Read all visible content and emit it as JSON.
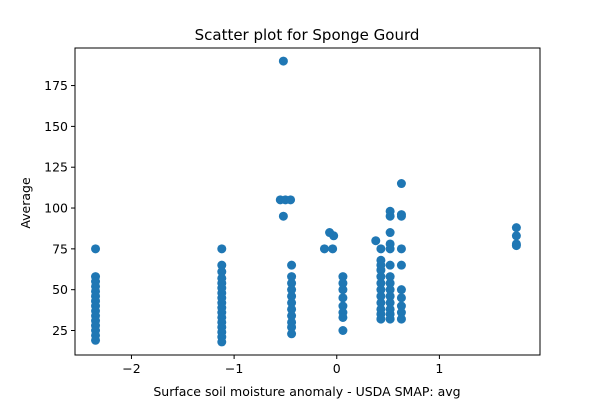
{
  "chart_data": {
    "type": "scatter",
    "title": "Scatter plot for Sponge Gourd",
    "xlabel": "Surface soil moisture anomaly  - USDA SMAP: avg",
    "ylabel": "Average",
    "xlim": [
      -2.55,
      1.98
    ],
    "ylim": [
      10,
      198
    ],
    "xticks": [
      -2,
      -1,
      0,
      1
    ],
    "yticks": [
      25,
      50,
      75,
      100,
      125,
      150,
      175
    ],
    "grid": false,
    "color": "#1f77b4",
    "series": [
      {
        "points": [
          [
            -2.35,
            75
          ],
          [
            -2.35,
            58
          ],
          [
            -2.35,
            55
          ],
          [
            -2.35,
            52
          ],
          [
            -2.35,
            49
          ],
          [
            -2.35,
            46
          ],
          [
            -2.35,
            43
          ],
          [
            -2.35,
            40
          ],
          [
            -2.35,
            37
          ],
          [
            -2.35,
            34
          ],
          [
            -2.35,
            31
          ],
          [
            -2.35,
            28
          ],
          [
            -2.35,
            25
          ],
          [
            -2.35,
            22
          ],
          [
            -2.35,
            19
          ],
          [
            -1.12,
            75
          ],
          [
            -1.12,
            65
          ],
          [
            -1.12,
            61
          ],
          [
            -1.12,
            57
          ],
          [
            -1.12,
            54
          ],
          [
            -1.12,
            51
          ],
          [
            -1.12,
            48
          ],
          [
            -1.12,
            45
          ],
          [
            -1.12,
            42
          ],
          [
            -1.12,
            39
          ],
          [
            -1.12,
            36
          ],
          [
            -1.12,
            33
          ],
          [
            -1.12,
            30
          ],
          [
            -1.12,
            27
          ],
          [
            -1.12,
            24
          ],
          [
            -1.12,
            21
          ],
          [
            -1.12,
            18
          ],
          [
            -0.52,
            190
          ],
          [
            -0.55,
            105
          ],
          [
            -0.5,
            105
          ],
          [
            -0.45,
            105
          ],
          [
            -0.52,
            95
          ],
          [
            -0.44,
            65
          ],
          [
            -0.44,
            58
          ],
          [
            -0.44,
            54
          ],
          [
            -0.44,
            50
          ],
          [
            -0.44,
            46
          ],
          [
            -0.44,
            42
          ],
          [
            -0.44,
            38
          ],
          [
            -0.44,
            34
          ],
          [
            -0.44,
            30
          ],
          [
            -0.44,
            27
          ],
          [
            -0.44,
            23
          ],
          [
            -0.07,
            85
          ],
          [
            -0.03,
            83
          ],
          [
            -0.12,
            75
          ],
          [
            -0.04,
            75
          ],
          [
            0.06,
            58
          ],
          [
            0.06,
            54
          ],
          [
            0.06,
            50
          ],
          [
            0.06,
            45
          ],
          [
            0.06,
            40
          ],
          [
            0.06,
            36
          ],
          [
            0.06,
            33
          ],
          [
            0.06,
            25
          ],
          [
            0.38,
            80
          ],
          [
            0.43,
            75
          ],
          [
            0.43,
            68
          ],
          [
            0.43,
            65
          ],
          [
            0.43,
            62
          ],
          [
            0.43,
            58
          ],
          [
            0.43,
            54
          ],
          [
            0.43,
            50
          ],
          [
            0.43,
            46
          ],
          [
            0.43,
            42
          ],
          [
            0.43,
            38
          ],
          [
            0.43,
            35
          ],
          [
            0.43,
            32
          ],
          [
            0.52,
            98
          ],
          [
            0.52,
            95
          ],
          [
            0.52,
            85
          ],
          [
            0.52,
            78
          ],
          [
            0.52,
            75
          ],
          [
            0.52,
            65
          ],
          [
            0.52,
            58
          ],
          [
            0.52,
            54
          ],
          [
            0.52,
            50
          ],
          [
            0.52,
            46
          ],
          [
            0.52,
            42
          ],
          [
            0.52,
            38
          ],
          [
            0.52,
            35
          ],
          [
            0.52,
            32
          ],
          [
            0.63,
            115
          ],
          [
            0.63,
            96
          ],
          [
            0.63,
            95
          ],
          [
            0.63,
            75
          ],
          [
            0.63,
            65
          ],
          [
            0.63,
            50
          ],
          [
            0.63,
            45
          ],
          [
            0.63,
            40
          ],
          [
            0.63,
            36
          ],
          [
            0.63,
            32
          ],
          [
            1.75,
            88
          ],
          [
            1.75,
            83
          ],
          [
            1.75,
            78
          ],
          [
            1.75,
            77
          ]
        ]
      }
    ]
  }
}
